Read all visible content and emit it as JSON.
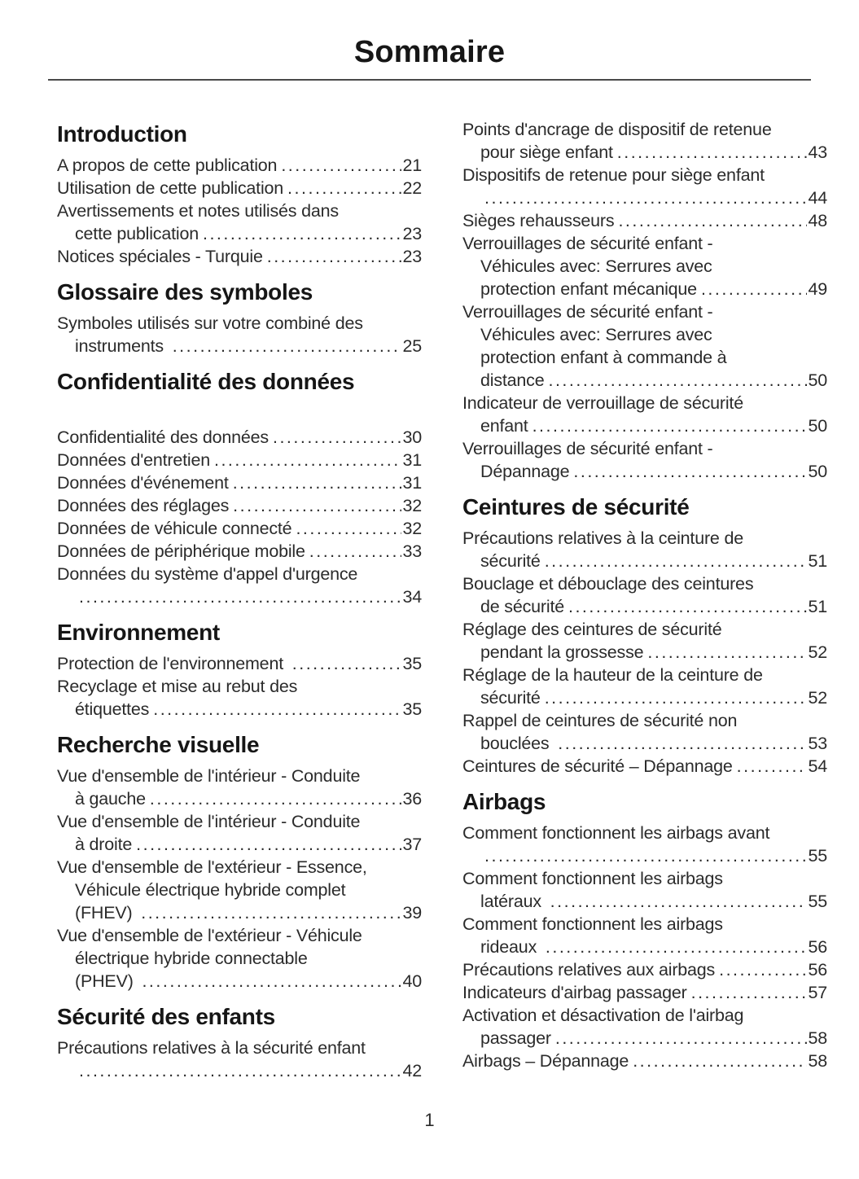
{
  "page": {
    "title": "Sommaire",
    "number": "1"
  },
  "colors": {
    "background": "#ffffff",
    "text": "#2b2b2b",
    "heading": "#161616",
    "rule": "#4a4a4a"
  },
  "columns": [
    {
      "sections": [
        {
          "title": "Introduction",
          "entries": [
            {
              "lines": [
                "A propos de cette publication"
              ],
              "page": "21"
            },
            {
              "lines": [
                "Utilisation de cette publication"
              ],
              "page": "22"
            },
            {
              "lines": [
                "Avertissements et notes utilisés dans",
                "cette publication"
              ],
              "page": "23"
            },
            {
              "lines": [
                "Notices spéciales - Turquie"
              ],
              "page": "23"
            }
          ]
        },
        {
          "title": "Glossaire des symboles",
          "entries": [
            {
              "lines": [
                "Symboles utilisés sur votre combiné des",
                "instruments "
              ],
              "page": "25"
            }
          ]
        },
        {
          "title": "Confidentialité des données",
          "extra_gap_after_title": true,
          "entries": [
            {
              "lines": [
                "Confidentialité des données"
              ],
              "page": "30"
            },
            {
              "lines": [
                "Données d'entretien"
              ],
              "page": "31"
            },
            {
              "lines": [
                "Données d'événement"
              ],
              "page": "31"
            },
            {
              "lines": [
                "Données des réglages"
              ],
              "page": "32"
            },
            {
              "lines": [
                "Données de véhicule connecté"
              ],
              "page": "32"
            },
            {
              "lines": [
                "Données de périphérique mobile"
              ],
              "page": "33"
            },
            {
              "lines": [
                "Données du système d'appel d'urgence",
                ""
              ],
              "page": "34"
            }
          ]
        },
        {
          "title": "Environnement",
          "entries": [
            {
              "lines": [
                "Protection de l'environnement "
              ],
              "page": "35"
            },
            {
              "lines": [
                "Recyclage et mise au rebut des",
                "étiquettes"
              ],
              "page": "35"
            }
          ]
        },
        {
          "title": "Recherche visuelle",
          "entries": [
            {
              "lines": [
                "Vue d'ensemble de l'intérieur - Conduite",
                "à gauche"
              ],
              "page": "36"
            },
            {
              "lines": [
                "Vue d'ensemble de l'intérieur - Conduite",
                "à droite"
              ],
              "page": "37"
            },
            {
              "lines": [
                "Vue d'ensemble de l'extérieur - Essence,",
                "Véhicule électrique hybride complet",
                "(FHEV) "
              ],
              "page": "39"
            },
            {
              "lines": [
                "Vue d'ensemble de l'extérieur - Véhicule",
                "électrique hybride connectable",
                "(PHEV) "
              ],
              "page": "40"
            }
          ]
        },
        {
          "title": "Sécurité des enfants",
          "entries": [
            {
              "lines": [
                "Précautions relatives à la sécurité enfant",
                ""
              ],
              "page": "42"
            }
          ]
        }
      ]
    },
    {
      "sections": [
        {
          "title": "",
          "entries": [
            {
              "lines": [
                "Points d'ancrage de dispositif de retenue",
                "pour siège enfant"
              ],
              "page": "43"
            },
            {
              "lines": [
                "Dispositifs de retenue pour siège enfant",
                ""
              ],
              "page": "44"
            },
            {
              "lines": [
                "Sièges rehausseurs"
              ],
              "page": "48"
            },
            {
              "lines": [
                "Verrouillages de sécurité enfant -",
                "Véhicules avec: Serrures avec",
                "protection enfant mécanique"
              ],
              "page": "49"
            },
            {
              "lines": [
                "Verrouillages de sécurité enfant -",
                "Véhicules avec: Serrures avec",
                "protection enfant à commande à",
                "distance"
              ],
              "page": "50"
            },
            {
              "lines": [
                "Indicateur de verrouillage de sécurité",
                "enfant"
              ],
              "page": "50"
            },
            {
              "lines": [
                "Verrouillages de sécurité enfant -",
                "Dépannage"
              ],
              "page": "50"
            }
          ]
        },
        {
          "title": "Ceintures de sécurité",
          "entries": [
            {
              "lines": [
                "Précautions relatives à la ceinture de",
                "sécurité"
              ],
              "page": "51"
            },
            {
              "lines": [
                "Bouclage et débouclage des ceintures",
                "de sécurité"
              ],
              "page": "51"
            },
            {
              "lines": [
                "Réglage des ceintures de sécurité",
                "pendant la grossesse"
              ],
              "page": "52"
            },
            {
              "lines": [
                "Réglage de la hauteur de la ceinture de",
                "sécurité"
              ],
              "page": "52"
            },
            {
              "lines": [
                "Rappel de ceintures de sécurité non",
                "bouclées "
              ],
              "page": "53"
            },
            {
              "lines": [
                "Ceintures de sécurité – Dépannage"
              ],
              "page": "54"
            }
          ]
        },
        {
          "title": "Airbags",
          "entries": [
            {
              "lines": [
                "Comment fonctionnent les airbags avant",
                ""
              ],
              "page": "55"
            },
            {
              "lines": [
                "Comment fonctionnent les airbags",
                "latéraux "
              ],
              "page": "55"
            },
            {
              "lines": [
                "Comment fonctionnent les airbags",
                "rideaux "
              ],
              "page": "56"
            },
            {
              "lines": [
                "Précautions relatives aux airbags"
              ],
              "page": "56"
            },
            {
              "lines": [
                "Indicateurs d'airbag passager"
              ],
              "page": "57"
            },
            {
              "lines": [
                "Activation et désactivation de l'airbag",
                "passager"
              ],
              "page": "58"
            },
            {
              "lines": [
                "Airbags – Dépannage"
              ],
              "page": "58"
            }
          ]
        }
      ]
    }
  ]
}
